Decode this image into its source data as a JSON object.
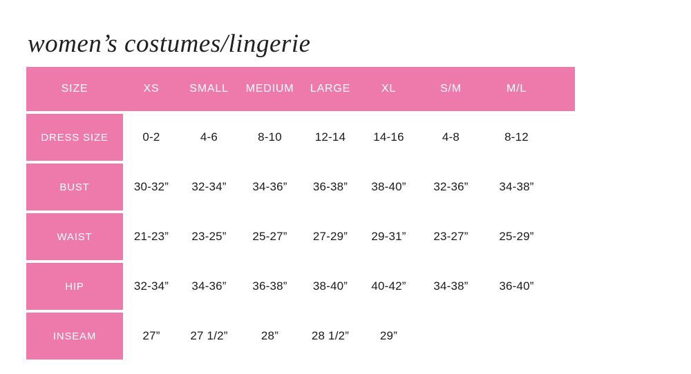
{
  "page": {
    "title": "women’s costumes/lingerie",
    "background_color": "#ffffff",
    "accent_color": "#ee7aab",
    "header_text_color": "#ffffff",
    "value_text_color": "#1a1a1a"
  },
  "table": {
    "columns": [
      "SIZE",
      "XS",
      "SMALL",
      "MEDIUM",
      "LARGE",
      "XL",
      "S/M",
      "M/L"
    ],
    "rows": [
      {
        "label": "DRESS SIZE",
        "values": [
          "0-2",
          "4-6",
          "8-10",
          "12-14",
          "14-16",
          "4-8",
          "8-12"
        ]
      },
      {
        "label": "BUST",
        "values": [
          "30-32”",
          "32-34”",
          "34-36”",
          "36-38”",
          "38-40”",
          "32-36”",
          "34-38”"
        ]
      },
      {
        "label": "WAIST",
        "values": [
          "21-23”",
          "23-25”",
          "25-27”",
          "27-29”",
          "29-31”",
          "23-27”",
          "25-29”"
        ]
      },
      {
        "label": "HIP",
        "values": [
          "32-34”",
          "34-36”",
          "36-38”",
          "38-40”",
          "40-42”",
          "34-38”",
          "36-40”"
        ]
      },
      {
        "label": "INSEAM",
        "values": [
          "27”",
          "27 1/2”",
          "28”",
          "28 1/2”",
          "29”",
          "",
          ""
        ]
      }
    ]
  },
  "chart_data": {
    "type": "table",
    "title": "women’s costumes/lingerie",
    "columns": [
      "SIZE",
      "XS",
      "SMALL",
      "MEDIUM",
      "LARGE",
      "XL",
      "S/M",
      "M/L"
    ],
    "rows": [
      [
        "DRESS SIZE",
        "0-2",
        "4-6",
        "8-10",
        "12-14",
        "14-16",
        "4-8",
        "8-12"
      ],
      [
        "BUST",
        "30-32”",
        "32-34”",
        "34-36”",
        "36-38”",
        "38-40”",
        "32-36”",
        "34-38”"
      ],
      [
        "WAIST",
        "21-23”",
        "23-25”",
        "25-27”",
        "27-29”",
        "29-31”",
        "23-27”",
        "25-29”"
      ],
      [
        "HIP",
        "32-34”",
        "34-36”",
        "36-38”",
        "38-40”",
        "40-42”",
        "34-38”",
        "36-40”"
      ],
      [
        "INSEAM",
        "27”",
        "27 1/2”",
        "28”",
        "28 1/2”",
        "29”",
        "",
        ""
      ]
    ],
    "layout": {
      "header_fill": "#ee7aab",
      "row_label_fill": "#ee7aab",
      "grid": "off"
    }
  }
}
